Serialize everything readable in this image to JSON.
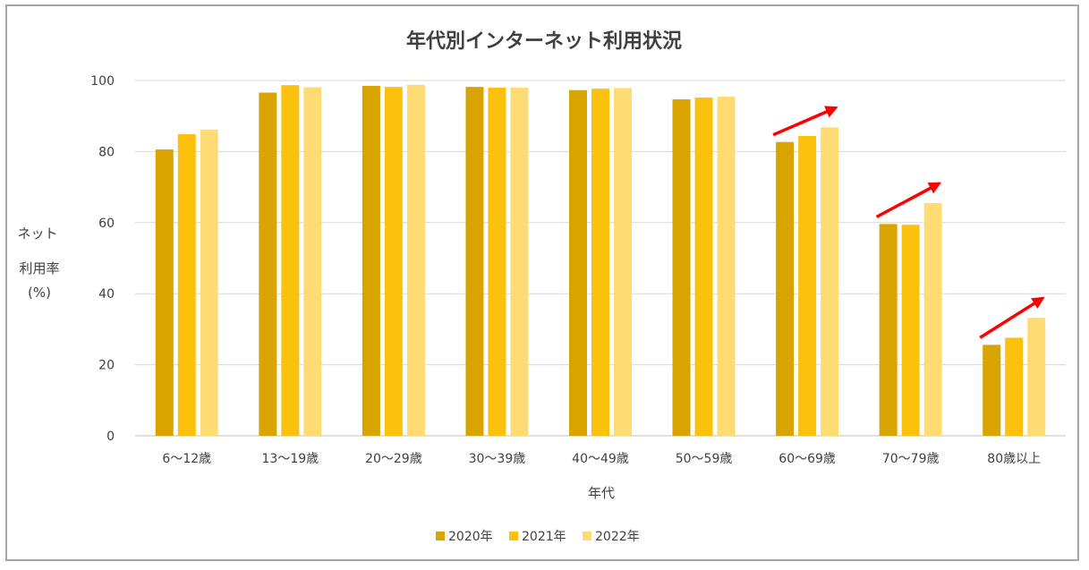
{
  "chart_data": {
    "type": "bar",
    "title": "年代別インターネット利用状況",
    "xlabel": "年代",
    "ylabel_lines": [
      "ネット",
      "利用率",
      "(%)"
    ],
    "categories": [
      "6～12歳",
      "13～19歳",
      "20～29歳",
      "30～39歳",
      "40～49歳",
      "50～59歳",
      "60～69歳",
      "70～79歳",
      "80歳以上"
    ],
    "series": [
      {
        "name": "2020年",
        "color": "#d9a300",
        "values": [
          80.6,
          96.6,
          98.5,
          98.2,
          97.3,
          94.7,
          82.7,
          59.6,
          25.6
        ]
      },
      {
        "name": "2021年",
        "color": "#fcc10c",
        "values": [
          84.9,
          98.7,
          98.2,
          98.0,
          97.7,
          95.2,
          84.4,
          59.4,
          27.6
        ]
      },
      {
        "name": "2022年",
        "color": "#fedb73",
        "values": [
          86.2,
          98.1,
          98.8,
          98.0,
          97.9,
          95.5,
          86.8,
          65.5,
          33.2
        ]
      }
    ],
    "ylim": [
      0,
      100
    ],
    "yticks": [
      0,
      20,
      40,
      60,
      80,
      100
    ],
    "grid": true,
    "legend_position": "bottom",
    "annotations": [
      {
        "type": "arrow",
        "category": "60～69歳",
        "color": "#ff0000"
      },
      {
        "type": "arrow",
        "category": "70～79歳",
        "color": "#ff0000"
      },
      {
        "type": "arrow",
        "category": "80歳以上",
        "color": "#ff0000"
      }
    ]
  }
}
